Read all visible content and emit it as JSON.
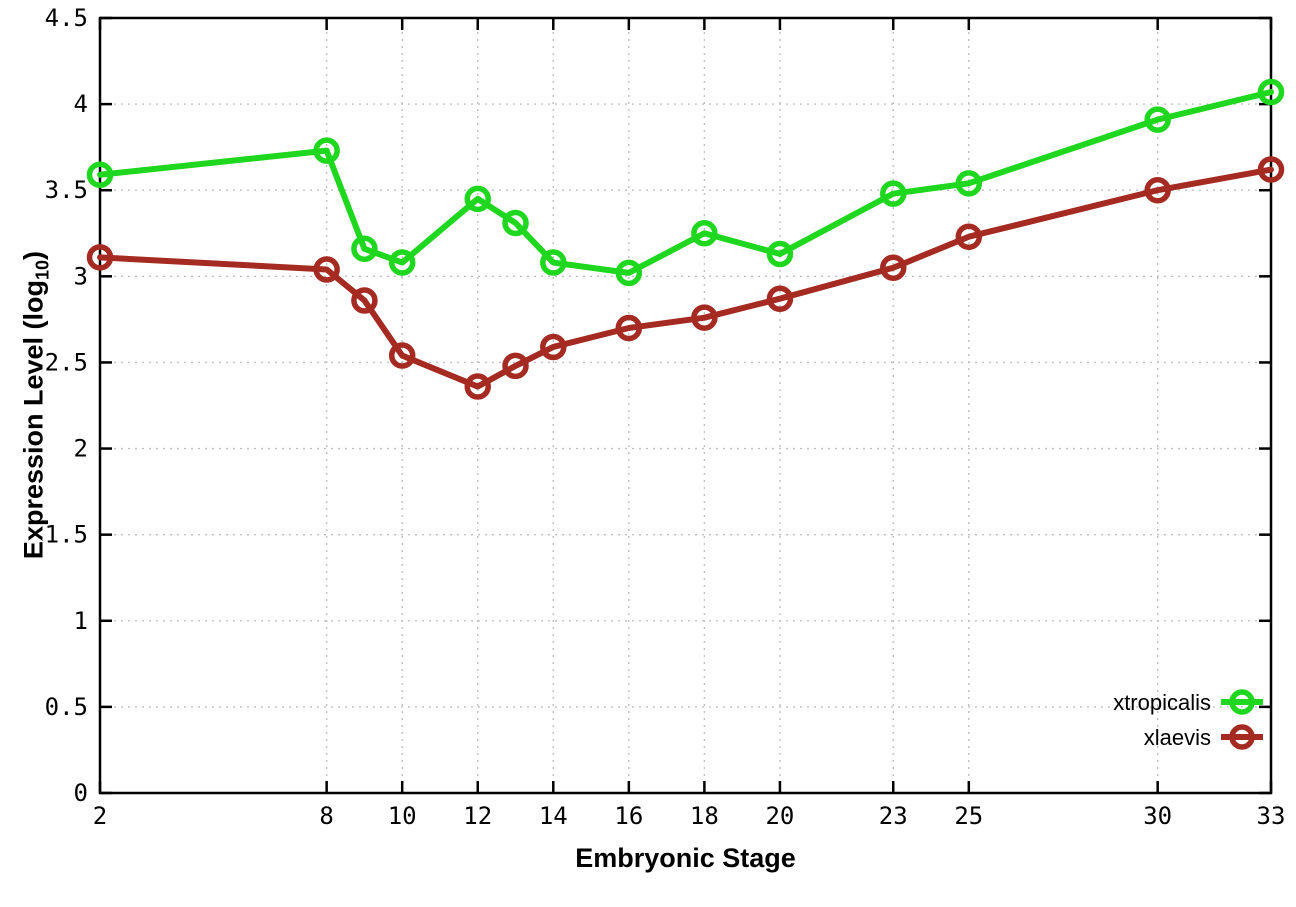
{
  "chart_data": {
    "type": "line",
    "x": [
      2,
      8,
      9,
      10,
      12,
      13,
      14,
      16,
      18,
      20,
      23,
      25,
      30,
      33
    ],
    "series": [
      {
        "name": "xtropicalis",
        "color": "#1ed71e",
        "marker": "open-circle",
        "values": [
          3.59,
          3.73,
          3.16,
          3.08,
          3.45,
          3.31,
          3.08,
          3.02,
          3.25,
          3.13,
          3.48,
          3.54,
          3.91,
          4.07
        ]
      },
      {
        "name": "xlaevis",
        "color": "#a52a22",
        "marker": "open-circle",
        "values": [
          3.11,
          3.04,
          2.86,
          2.54,
          2.36,
          2.48,
          2.59,
          2.7,
          2.76,
          2.87,
          3.05,
          3.23,
          3.5,
          3.62
        ]
      }
    ],
    "title": "",
    "xlabel": "Embryonic Stage",
    "ylabel_parts": {
      "prefix": "Expression Level (log",
      "subscript": "10",
      "suffix": ")"
    },
    "xticks": [
      2,
      8,
      10,
      12,
      14,
      16,
      18,
      20,
      23,
      25,
      30,
      33
    ],
    "yticks": [
      0,
      0.5,
      1,
      1.5,
      2,
      2.5,
      3,
      3.5,
      4,
      4.5
    ],
    "xlim": [
      2,
      33
    ],
    "ylim": [
      0,
      4.5
    ],
    "grid": true,
    "grid_style": "dotted",
    "grid_color": "#c0c0c0",
    "axis_color": "#000000",
    "background_color": "#ffffff",
    "legend_position": "inside-bottom-right"
  }
}
